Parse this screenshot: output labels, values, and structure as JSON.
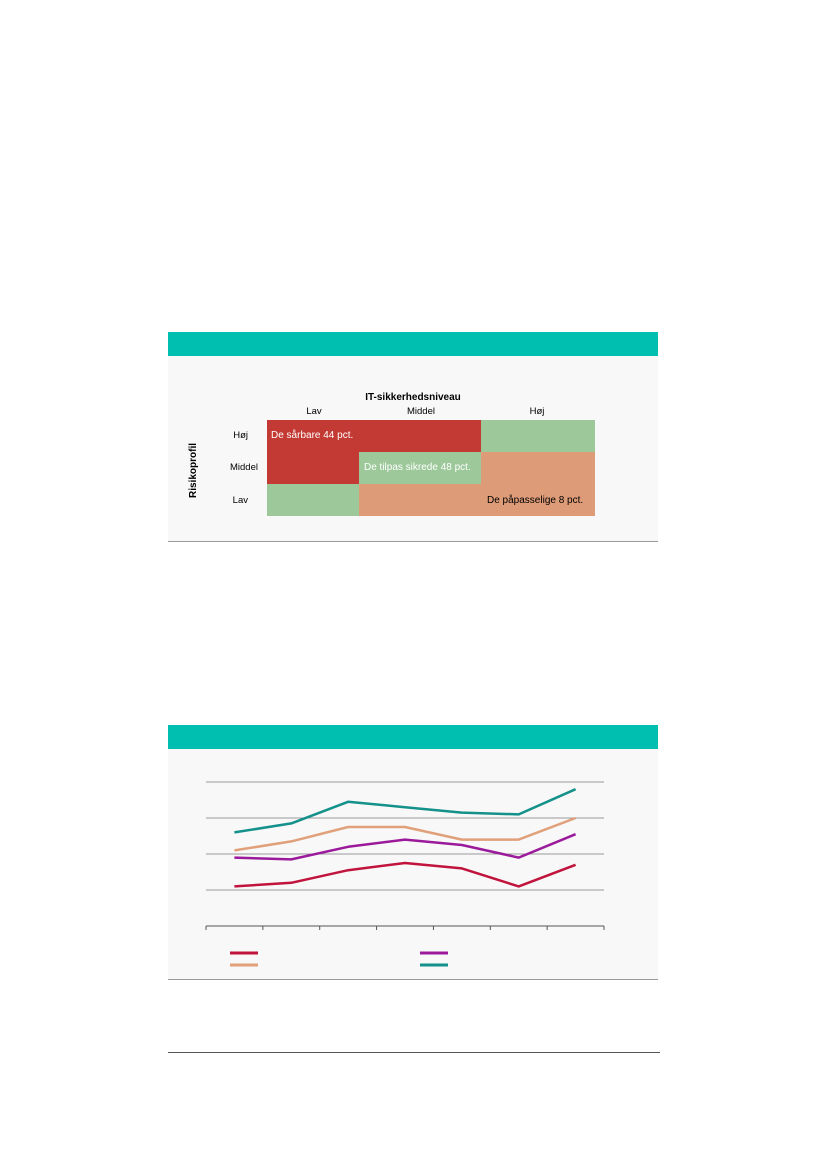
{
  "figure1": {
    "x_axis_title": "IT-sikkerhedsniveau",
    "y_axis_title": "Risikoprofil",
    "columns": [
      "Lav",
      "Middel",
      "Høj"
    ],
    "rows": [
      "Høj",
      "Middel",
      "Lav"
    ],
    "segments": {
      "vulnerable": "De sårbare 44 pct.",
      "adapted": "De tilpas sikrede 48 pct.",
      "careful": "De påpasselige 8 pct."
    },
    "colors": {
      "bar": "#00bfb0",
      "vulnerable": "#c33a34",
      "adapted": "#9cc89a",
      "careful": "#dd9b78"
    }
  },
  "figure2": {
    "chart_data": {
      "type": "line",
      "title": "",
      "xlabel": "",
      "ylabel": "",
      "ylim": [
        0,
        4
      ],
      "grid": true,
      "legend_placement": "bottom",
      "x": [
        1,
        2,
        3,
        4,
        5,
        6,
        7
      ],
      "series": [
        {
          "values": [
            1.1,
            1.2,
            1.55,
            1.75,
            1.6,
            1.1,
            1.7
          ],
          "color": "#c0143c"
        },
        {
          "values": [
            1.9,
            1.85,
            2.2,
            2.4,
            2.25,
            1.9,
            2.55
          ],
          "color": "#9b1a9b"
        },
        {
          "values": [
            2.1,
            2.35,
            2.75,
            2.75,
            2.4,
            2.4,
            3.0
          ],
          "color": "#e0a07a"
        },
        {
          "values": [
            2.6,
            2.85,
            3.45,
            3.3,
            3.15,
            3.1,
            3.8
          ],
          "color": "#13918a"
        }
      ]
    }
  }
}
